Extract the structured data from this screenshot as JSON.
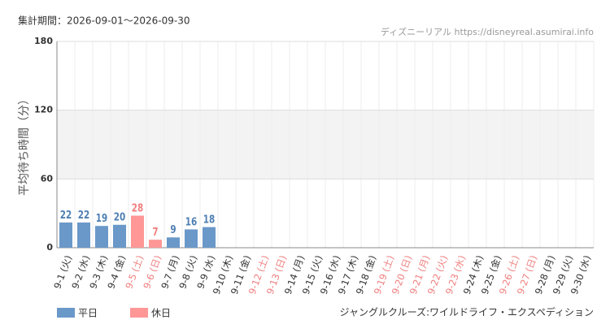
{
  "chart_data": {
    "type": "bar",
    "title": "集計期間：2026-09-01～2026-09-30",
    "source": "ディズニーリアル https://disneyreal.asumirai.info",
    "y_label": "平均待ち時間（分）",
    "footnote": "ジャングルクルーズ:ワイルドライフ・エクスペディション",
    "categories": [
      "9-1 (火)",
      "9-2 (水)",
      "9-3 (木)",
      "9-4 (金)",
      "9-5 (土)",
      "9-6 (日)",
      "9-7 (月)",
      "9-8 (火)",
      "9-9 (水)",
      "9-10 (木)",
      "9-11 (金)",
      "9-12 (土)",
      "9-13 (日)",
      "9-14 (月)",
      "9-15 (火)",
      "9-16 (水)",
      "9-17 (木)",
      "9-18 (金)",
      "9-19 (土)",
      "9-20 (日)",
      "9-21 (月)",
      "9-22 (火)",
      "9-23 (水)",
      "9-24 (木)",
      "9-25 (金)",
      "9-26 (土)",
      "9-27 (日)",
      "9-28 (月)",
      "9-29 (火)",
      "9-30 (水)"
    ],
    "category_label_colors": [
      "#333",
      "#333",
      "#333",
      "#333",
      "#f07f7f",
      "#f07f7f",
      "#333",
      "#333",
      "#333",
      "#333",
      "#333",
      "#f07f7f",
      "#f07f7f",
      "#333",
      "#333",
      "#333",
      "#333",
      "#333",
      "#f07f7f",
      "#f07f7f",
      "#f07f7f",
      "#f07f7f",
      "#f07f7f",
      "#333",
      "#333",
      "#f07f7f",
      "#f07f7f",
      "#333",
      "#333",
      "#333"
    ],
    "series": [
      {
        "name": "平日",
        "color": "#6a98c9",
        "label_color": "#4f7fb3",
        "values": [
          22,
          22,
          19,
          20,
          null,
          null,
          9,
          16,
          18,
          null,
          null,
          null,
          null,
          null,
          null,
          null,
          null,
          null,
          null,
          null,
          null,
          null,
          null,
          null,
          null,
          null,
          null,
          null,
          null,
          null
        ]
      },
      {
        "name": "休日",
        "color": "#ff9797",
        "label_color": "#f07f7f",
        "values": [
          null,
          null,
          null,
          null,
          28,
          7,
          null,
          null,
          null,
          null,
          null,
          null,
          null,
          null,
          null,
          null,
          null,
          null,
          null,
          null,
          null,
          null,
          null,
          null,
          null,
          null,
          null,
          null,
          null,
          null
        ]
      }
    ],
    "ylim": [
      0,
      180
    ],
    "yticks": [
      0,
      60,
      120,
      180
    ],
    "grid": true
  }
}
